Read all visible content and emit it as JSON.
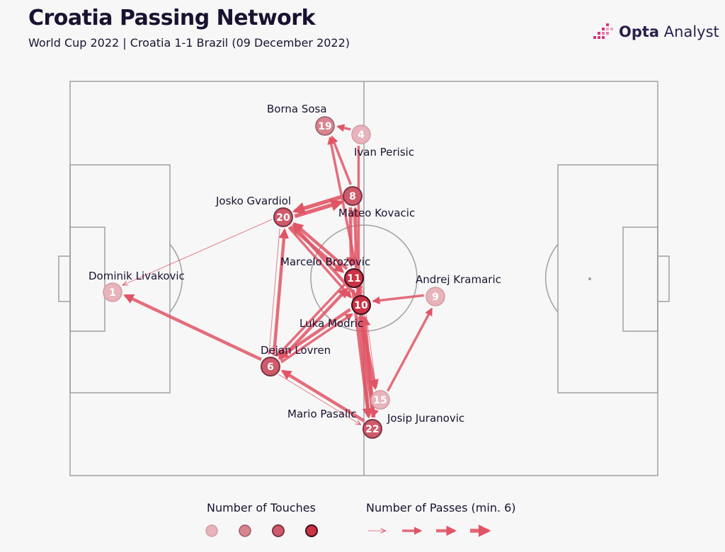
{
  "header": {
    "title": "Croatia Passing Network",
    "subtitle": "World Cup 2022 | Croatia 1-1 Brazil (09 December 2022)"
  },
  "brand": {
    "bold": "Opta",
    "rest": " Analyst",
    "icon": "opta-bars-icon"
  },
  "legend": {
    "touches_title": "Number of Touches",
    "passes_title": "Number of Passes (min. 6)"
  },
  "colors": {
    "node_light": "#e8b4bb",
    "node_mid": "#d8848f",
    "node_dark": "#cf5a6a",
    "node_darkest": "#cc3344",
    "arrow": "#e05565",
    "pitch_line": "#a0a0a0"
  },
  "chart_data": {
    "type": "network",
    "nodes": [
      {
        "id": "1",
        "name": "Dominik Livakovic",
        "number": "1",
        "level": 1
      },
      {
        "id": "19",
        "name": "Borna Sosa",
        "number": "19",
        "level": 2
      },
      {
        "id": "4",
        "name": "Ivan Perisic",
        "number": "4",
        "level": 1
      },
      {
        "id": "8",
        "name": "Mateo Kovacic",
        "number": "8",
        "level": 3
      },
      {
        "id": "20",
        "name": "Josko Gvardiol",
        "number": "20",
        "level": 3
      },
      {
        "id": "11",
        "name": "Marcelo Brozovic",
        "number": "11",
        "level": 4
      },
      {
        "id": "10",
        "name": "Luka Modric",
        "number": "10",
        "level": 4
      },
      {
        "id": "9",
        "name": "Andrej Kramaric",
        "number": "9",
        "level": 1
      },
      {
        "id": "6",
        "name": "Dejan Lovren",
        "number": "6",
        "level": 3
      },
      {
        "id": "15",
        "name": "Mario Pasalic",
        "number": "15",
        "level": 1
      },
      {
        "id": "22",
        "name": "Josip Juranovic",
        "number": "22",
        "level": 3
      }
    ],
    "edges": [
      {
        "from": "6",
        "to": "1",
        "level": 3
      },
      {
        "from": "20",
        "to": "1",
        "level": 1
      },
      {
        "from": "4",
        "to": "19",
        "level": 2
      },
      {
        "from": "8",
        "to": "19",
        "level": 2
      },
      {
        "from": "20",
        "to": "8",
        "level": 4
      },
      {
        "from": "8",
        "to": "20",
        "level": 4
      },
      {
        "from": "11",
        "to": "20",
        "level": 3
      },
      {
        "from": "20",
        "to": "11",
        "level": 3
      },
      {
        "from": "10",
        "to": "20",
        "level": 3
      },
      {
        "from": "20",
        "to": "10",
        "level": 2
      },
      {
        "from": "6",
        "to": "20",
        "level": 3
      },
      {
        "from": "20",
        "to": "6",
        "level": 1
      },
      {
        "from": "6",
        "to": "11",
        "level": 3
      },
      {
        "from": "10",
        "to": "6",
        "level": 3
      },
      {
        "from": "6",
        "to": "10",
        "level": 2
      },
      {
        "from": "11",
        "to": "6",
        "level": 2
      },
      {
        "from": "22",
        "to": "6",
        "level": 3
      },
      {
        "from": "22",
        "to": "11",
        "level": 4
      },
      {
        "from": "11",
        "to": "22",
        "level": 3
      },
      {
        "from": "10",
        "to": "22",
        "level": 3
      },
      {
        "from": "22",
        "to": "10",
        "level": 3
      },
      {
        "from": "10",
        "to": "15",
        "level": 3
      },
      {
        "from": "15",
        "to": "9",
        "level": 2
      },
      {
        "from": "9",
        "to": "10",
        "level": 2
      },
      {
        "from": "11",
        "to": "8",
        "level": 3
      },
      {
        "from": "8",
        "to": "11",
        "level": 3
      },
      {
        "from": "10",
        "to": "19",
        "level": 2
      },
      {
        "from": "8",
        "to": "15",
        "level": 1
      },
      {
        "from": "4",
        "to": "10",
        "level": 2
      },
      {
        "from": "15",
        "to": "22",
        "level": 2
      },
      {
        "from": "6",
        "to": "22",
        "level": 1
      }
    ]
  }
}
